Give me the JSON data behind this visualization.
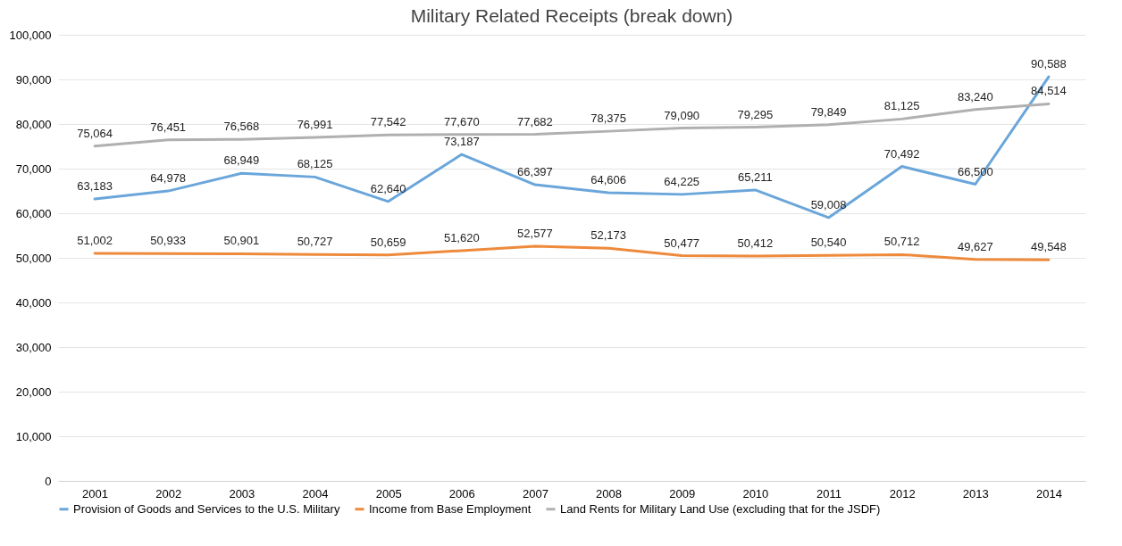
{
  "chart_data": {
    "type": "line",
    "title": "Military Related Receipts (break down)",
    "categories": [
      "2001",
      "2002",
      "2003",
      "2004",
      "2005",
      "2006",
      "2007",
      "2008",
      "2009",
      "2010",
      "2011",
      "2012",
      "2013",
      "2014"
    ],
    "series": [
      {
        "name": "Provision of Goods and Services to the U.S. Military",
        "color": "#6aa6da",
        "values": [
          63183,
          64978,
          68949,
          68125,
          62640,
          73187,
          66397,
          64606,
          64225,
          65211,
          59008,
          70492,
          66500,
          90588
        ],
        "value_labels": [
          "63,183",
          "64,978",
          "68,949",
          "68,125",
          "62,640",
          "73,187",
          "66,397",
          "64,606",
          "64,225",
          "65,211",
          "59,008",
          "70,492",
          "66,500",
          "90,588"
        ]
      },
      {
        "name": "Income from Base Employment",
        "color": "#ee8a3c",
        "values": [
          51002,
          50933,
          50901,
          50727,
          50659,
          51620,
          52577,
          52173,
          50477,
          50412,
          50540,
          50712,
          49627,
          49548
        ],
        "value_labels": [
          "51,002",
          "50,933",
          "50,901",
          "50,727",
          "50,659",
          "51,620",
          "52,577",
          "52,173",
          "50,477",
          "50,412",
          "50,540",
          "50,712",
          "49,627",
          "49,548"
        ]
      },
      {
        "name": "Land Rents for Military Land Use (excluding that for the JSDF)",
        "color": "#b0b0b0",
        "values": [
          75064,
          76451,
          76568,
          76991,
          77542,
          77670,
          77682,
          78375,
          79090,
          79295,
          79849,
          81125,
          83240,
          84514
        ],
        "value_labels": [
          "75,064",
          "76,451",
          "76,568",
          "76,991",
          "77,542",
          "77,670",
          "77,682",
          "78,375",
          "79,090",
          "79,295",
          "79,849",
          "81,125",
          "83,240",
          "84,514"
        ]
      }
    ],
    "ylim": [
      0,
      100000
    ],
    "yticks": [
      0,
      {
        "value": 10000,
        "label": "10,000"
      },
      {
        "value": 20000,
        "label": "20,000"
      },
      {
        "value": 30000,
        "label": "30,000"
      },
      {
        "value": 40000,
        "label": "40,000"
      },
      {
        "value": 50000,
        "label": "50,000"
      },
      {
        "value": 60000,
        "label": "60,000"
      },
      {
        "value": 70000,
        "label": "70,000"
      },
      {
        "value": 80000,
        "label": "80,000"
      },
      {
        "value": 90000,
        "label": "90,000"
      },
      {
        "value": 100000,
        "label": "100,000"
      }
    ],
    "grid": "y",
    "legend": "bottom"
  }
}
